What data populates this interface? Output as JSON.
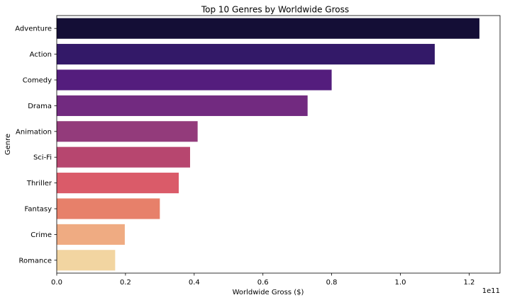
{
  "chart_data": {
    "type": "bar",
    "orientation": "horizontal",
    "title": "Top 10 Genres by Worldwide Gross",
    "xlabel": "Worldwide Gross ($)",
    "ylabel": "Genre",
    "x_offset_text": "1e11",
    "categories": [
      "Adventure",
      "Action",
      "Comedy",
      "Drama",
      "Animation",
      "Sci-Fi",
      "Thriller",
      "Fantasy",
      "Crime",
      "Romance"
    ],
    "values": [
      123000000000,
      110000000000,
      80000000000,
      73000000000,
      41000000000,
      38800000000,
      35500000000,
      30000000000,
      19800000000,
      17000000000
    ],
    "xlim": [
      0,
      129000000000
    ],
    "xticks": [
      0,
      20000000000,
      40000000000,
      60000000000,
      80000000000,
      100000000000,
      120000000000
    ],
    "xtick_labels": [
      "0.0",
      "0.2",
      "0.4",
      "0.6",
      "0.8",
      "1.0",
      "1.2"
    ],
    "colors": [
      "#140e36",
      "#331968",
      "#541d7d",
      "#722a80",
      "#933b7b",
      "#b7466f",
      "#da5b69",
      "#e7806a",
      "#efab82",
      "#f2d5a1"
    ],
    "grid": false,
    "legend": "none"
  }
}
